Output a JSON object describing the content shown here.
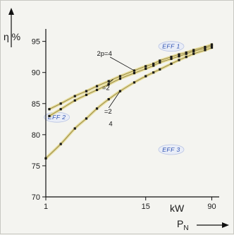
{
  "chart_data": {
    "type": "line",
    "ylabel": "η %",
    "xlabel": "P_N",
    "xunit": "kW",
    "x_scale": "log",
    "xlim": [
      1,
      110
    ],
    "ylim": [
      70,
      97
    ],
    "xticks": [
      {
        "value": 1,
        "label": "1"
      },
      {
        "value": 15,
        "label": "15"
      },
      {
        "value": 90,
        "label": "90"
      }
    ],
    "yticks": [
      {
        "value": 70,
        "label": "70"
      },
      {
        "value": 75,
        "label": "75"
      },
      {
        "value": 80,
        "label": "80"
      },
      {
        "value": 85,
        "label": "85"
      },
      {
        "value": 90,
        "label": "90"
      },
      {
        "value": 95,
        "label": "95"
      }
    ],
    "grid": false,
    "zones": [
      {
        "label": "EFF 1",
        "x": 30,
        "y": 94.2
      },
      {
        "label": "EFF 2",
        "x": 1.35,
        "y": 82.8
      },
      {
        "label": "EFF 3",
        "x": 30,
        "y": 77.6
      }
    ],
    "annotations": [
      {
        "text": "2p=4",
        "x": 4.9,
        "y": 92.7
      },
      {
        "text": "=2",
        "x": 5.1,
        "y": 87.2
      },
      {
        "text": "=2",
        "x": 5.4,
        "y": 83.4
      },
      {
        "text": "4",
        "x": 5.8,
        "y": 81.4
      }
    ],
    "series": [
      {
        "x": [
          1.1,
          1.5,
          2.2,
          3,
          4,
          5.5,
          7.5,
          11,
          15,
          18.5,
          22,
          30,
          37,
          45,
          55,
          75,
          90
        ],
        "values": [
          84.1,
          85.0,
          86.2,
          87.0,
          87.8,
          88.6,
          89.4,
          90.3,
          91.0,
          91.4,
          91.9,
          92.5,
          92.9,
          93.2,
          93.6,
          94.1,
          94.5
        ],
        "color": "#1a1a1a",
        "band": "#e6dc9a"
      },
      {
        "x": [
          1.1,
          1.5,
          2.2,
          3,
          4,
          5.5,
          7.5,
          11,
          15,
          18.5,
          22,
          30,
          37,
          45,
          55,
          75,
          90
        ],
        "values": [
          83.0,
          84.1,
          85.5,
          86.4,
          87.2,
          88.1,
          89.0,
          89.9,
          90.6,
          91.1,
          91.6,
          92.2,
          92.6,
          93.0,
          93.4,
          93.9,
          94.3
        ],
        "color": "#1a1a1a",
        "band": "#e6dc9a"
      },
      {
        "x": [
          1,
          1.5,
          2.2,
          3,
          4,
          5.5,
          7.5,
          11,
          15,
          18.5,
          22,
          30,
          37,
          45,
          55,
          75,
          90
        ],
        "values": [
          76.2,
          78.5,
          81.0,
          82.6,
          84.2,
          85.7,
          87.0,
          88.4,
          89.4,
          90.0,
          90.5,
          91.4,
          92.0,
          92.5,
          93.0,
          93.6,
          94.0
        ],
        "color": "#1a1a1a",
        "band": "#e6dc9a"
      }
    ]
  }
}
